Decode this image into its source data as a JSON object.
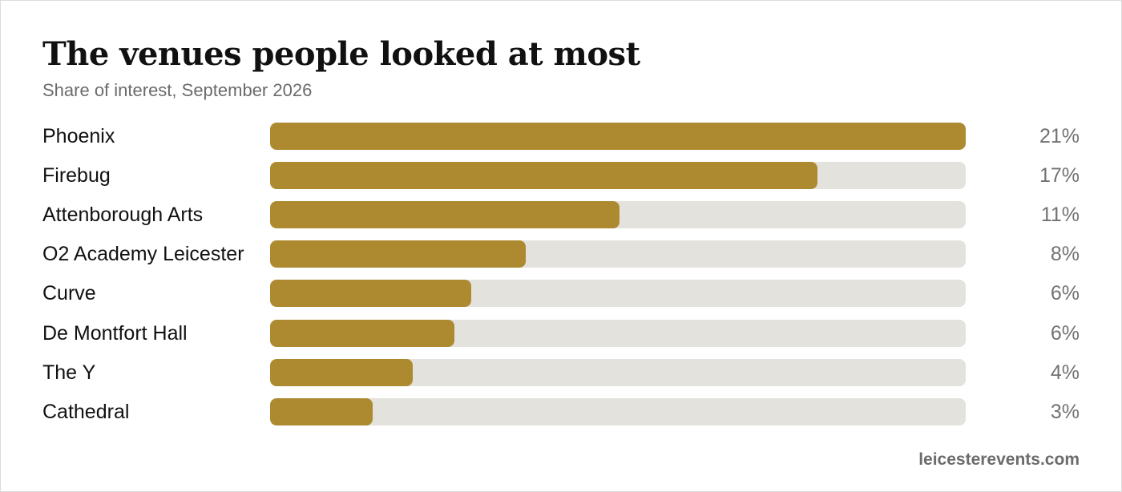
{
  "chart_data": {
    "type": "bar",
    "orientation": "horizontal",
    "title": "The venues people looked at most",
    "subtitle": "Share of interest, September 2026",
    "categories": [
      "Phoenix",
      "Firebug",
      "Attenborough Arts",
      "O2 Academy Leicester",
      "Curve",
      "De Montfort Hall",
      "The Y",
      "Cathedral"
    ],
    "values": [
      21,
      17,
      11,
      8,
      6,
      6,
      4,
      3
    ],
    "value_labels": [
      "21%",
      "17%",
      "11%",
      "8%",
      "6%",
      "6%",
      "4%",
      "3%"
    ],
    "fill_fractions": [
      1.0,
      0.787,
      0.502,
      0.367,
      0.289,
      0.265,
      0.205,
      0.147
    ],
    "unit": "%",
    "grid": false,
    "legend": "none",
    "colors": {
      "bar": "#ad8a30",
      "track": "#e4e2dd",
      "label": "#111111",
      "value": "#727272"
    }
  },
  "footer": {
    "source": "leicesterevents.com"
  }
}
